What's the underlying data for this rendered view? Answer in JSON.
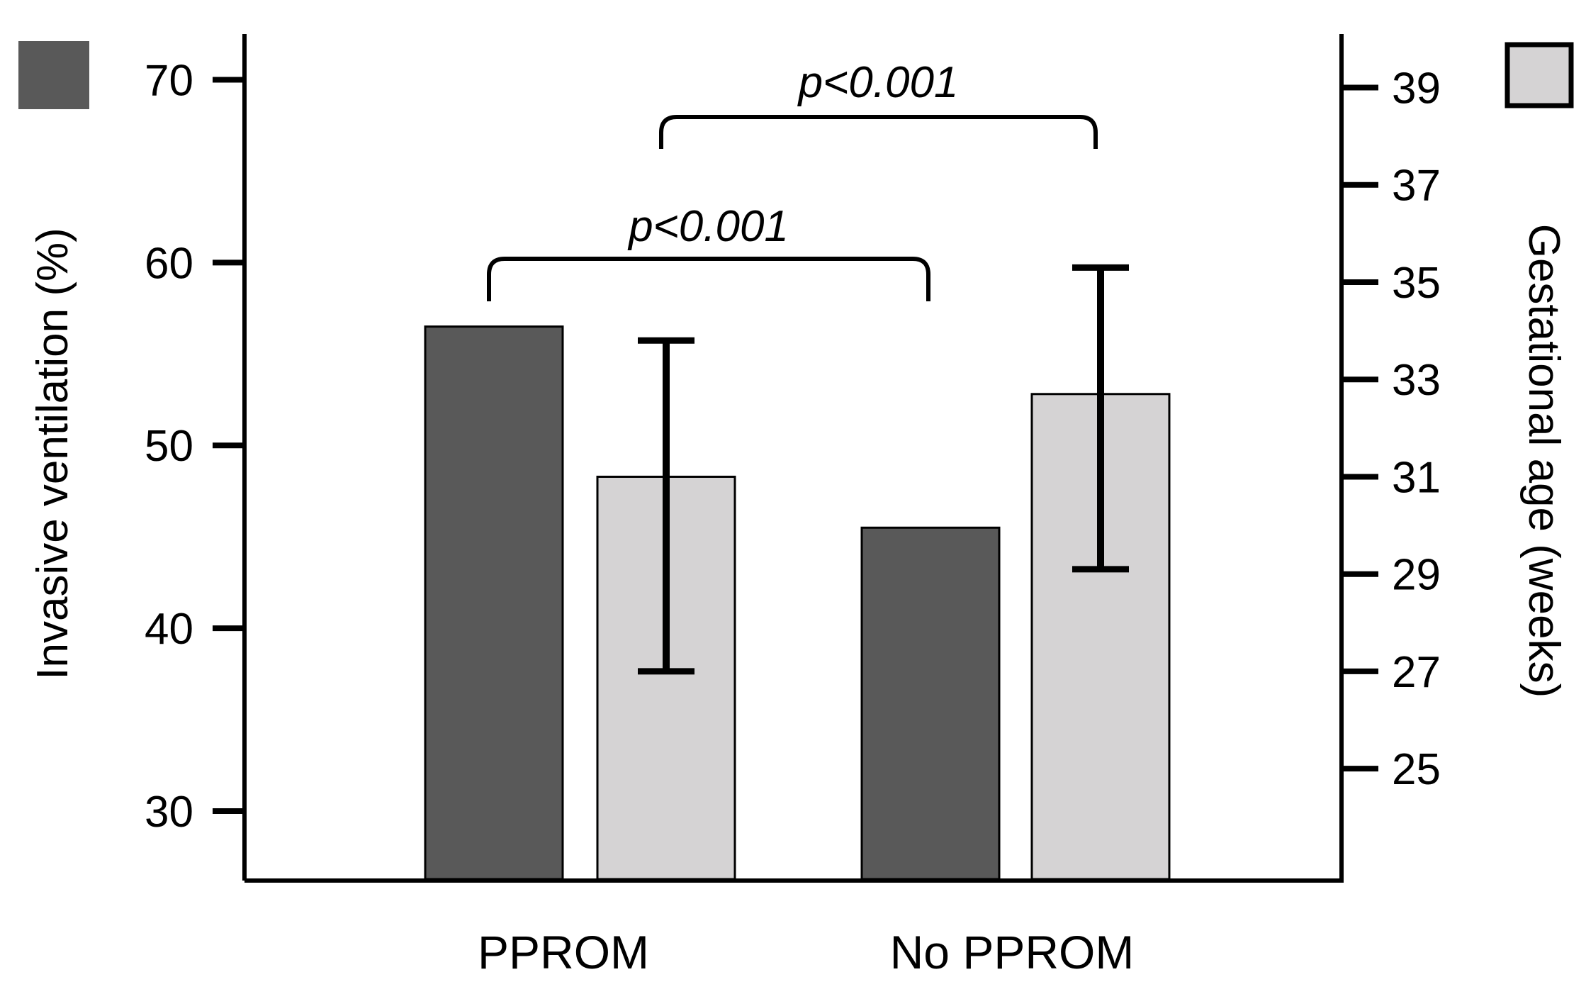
{
  "chart_data": {
    "type": "bar",
    "categories": [
      "PPROM",
      "No PPROM"
    ],
    "left_axis": {
      "label": "Invasive ventilation (%)",
      "ylim": [
        26.2,
        72.5
      ],
      "ticks": [
        30,
        40,
        50,
        60,
        70
      ]
    },
    "right_axis": {
      "label": "Gestational age (weeks)",
      "ylim": [
        22.7,
        40.1
      ],
      "ticks": [
        25,
        27,
        29,
        31,
        33,
        35,
        37,
        39
      ]
    },
    "series": [
      {
        "axis": "left",
        "color": "#595959",
        "values": [
          56.5,
          45.5
        ]
      },
      {
        "axis": "right",
        "color": "#d5d3d4",
        "values": [
          31.0,
          32.7
        ],
        "error_low": [
          27.0,
          29.1
        ],
        "error_high": [
          33.8,
          35.3
        ]
      }
    ],
    "comparisons": [
      {
        "text": "p<0.001",
        "from": "PPROM|left",
        "to": "No PPROM|left"
      },
      {
        "text": "p<0.001",
        "from": "PPROM|right",
        "to": "No PPROM|right"
      }
    ],
    "legend": "top-left and top-right swatches",
    "grid": false
  }
}
